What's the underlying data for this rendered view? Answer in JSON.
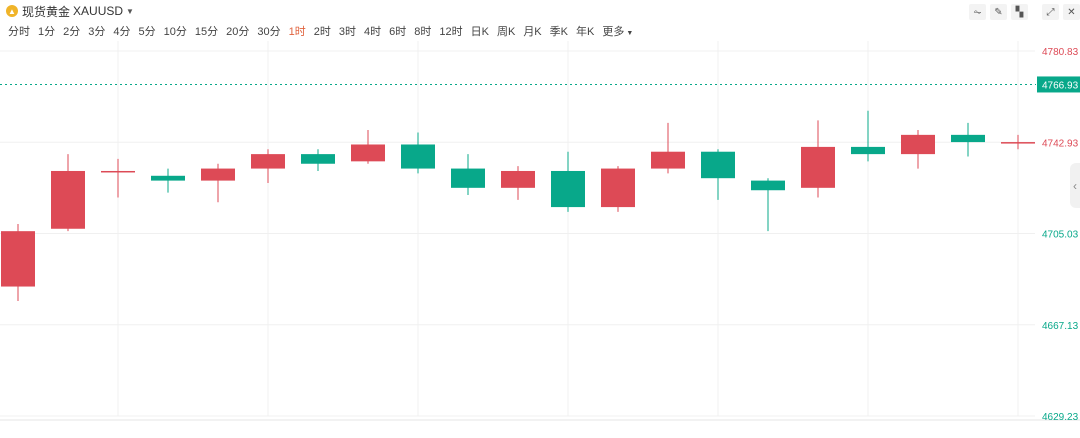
{
  "header": {
    "symbol_name": "现货黄金",
    "symbol_code": "XAUUSD",
    "coin_icon": "gold-coin-icon",
    "dropdown_icon": "caret-down-icon",
    "tools": [
      {
        "name": "line-style-icon",
        "glyph": "⏦"
      },
      {
        "name": "pencil-icon",
        "glyph": "✎"
      },
      {
        "name": "indicator-icon",
        "glyph": "▚"
      },
      {
        "name": "expand-icon",
        "glyph": "⤢"
      },
      {
        "name": "close-icon",
        "glyph": "✕"
      }
    ]
  },
  "periods": {
    "items": [
      "分时",
      "1分",
      "2分",
      "3分",
      "4分",
      "5分",
      "10分",
      "15分",
      "20分",
      "30分",
      "1时",
      "2时",
      "3时",
      "4时",
      "6时",
      "8时",
      "12时",
      "日K",
      "周K",
      "月K",
      "季K",
      "年K",
      "更多"
    ],
    "active": "1时"
  },
  "colors": {
    "up": "#dd4a56",
    "down": "#08a88a",
    "grid": "#f0f0f0",
    "current_line": "#08a88a",
    "current_label_bg": "#08a88a"
  },
  "chart_data": {
    "type": "candlestick",
    "symbol": "XAUUSD",
    "interval": "1时",
    "ylim": [
      4629.23,
      4780.83
    ],
    "y_ticks": [
      4780.83,
      4742.93,
      4705.03,
      4667.13,
      4629.23
    ],
    "current_price": 4766.93,
    "candles": [
      {
        "open": 4683,
        "close": 4706,
        "high": 4709,
        "low": 4677
      },
      {
        "open": 4707,
        "close": 4731,
        "high": 4738,
        "low": 4706
      },
      {
        "open": 4731,
        "close": 4731,
        "high": 4736,
        "low": 4720
      },
      {
        "open": 4729,
        "close": 4727,
        "high": 4732,
        "low": 4722
      },
      {
        "open": 4727,
        "close": 4732,
        "high": 4734,
        "low": 4718
      },
      {
        "open": 4732,
        "close": 4738,
        "high": 4740,
        "low": 4726
      },
      {
        "open": 4738,
        "close": 4734,
        "high": 4740,
        "low": 4731
      },
      {
        "open": 4735,
        "close": 4742,
        "high": 4748,
        "low": 4734
      },
      {
        "open": 4742,
        "close": 4732,
        "high": 4747,
        "low": 4730
      },
      {
        "open": 4732,
        "close": 4724,
        "high": 4738,
        "low": 4721
      },
      {
        "open": 4724,
        "close": 4731,
        "high": 4733,
        "low": 4719
      },
      {
        "open": 4731,
        "close": 4716,
        "high": 4739,
        "low": 4714
      },
      {
        "open": 4716,
        "close": 4732,
        "high": 4733,
        "low": 4714
      },
      {
        "open": 4732,
        "close": 4739,
        "high": 4751,
        "low": 4730
      },
      {
        "open": 4739,
        "close": 4728,
        "high": 4740,
        "low": 4719
      },
      {
        "open": 4727,
        "close": 4723,
        "high": 4728,
        "low": 4706
      },
      {
        "open": 4724,
        "close": 4741,
        "high": 4752,
        "low": 4720
      },
      {
        "open": 4741,
        "close": 4738,
        "high": 4756,
        "low": 4735
      },
      {
        "open": 4738,
        "close": 4746,
        "high": 4748,
        "low": 4732
      },
      {
        "open": 4746,
        "close": 4743,
        "high": 4751,
        "low": 4737
      },
      {
        "open": 4743,
        "close": 4743,
        "high": 4746,
        "low": 4740
      }
    ]
  }
}
